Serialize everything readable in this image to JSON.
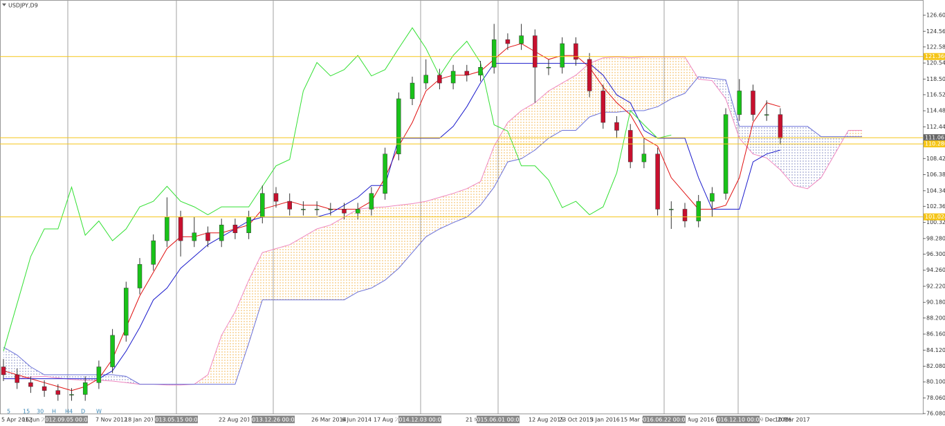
{
  "chart_data": {
    "type": "candlestick",
    "title": "USDJPY,D9",
    "up_color": "#19c219",
    "down_color": "#c8102e",
    "ylim": [
      76.08,
      128.53
    ],
    "yticks": [
      {
        "value": 126.6,
        "label": "126.600"
      },
      {
        "value": 124.56,
        "label": "124.560"
      },
      {
        "value": 122.58,
        "label": "122.580"
      },
      {
        "value": 120.54,
        "label": "120.540"
      },
      {
        "value": 118.5,
        "label": "118.500"
      },
      {
        "value": 116.52,
        "label": "116.520"
      },
      {
        "value": 114.48,
        "label": "114.480"
      },
      {
        "value": 112.44,
        "label": "112.440"
      },
      {
        "value": 110.4,
        "label": "110.400"
      },
      {
        "value": 108.42,
        "label": "108.420"
      },
      {
        "value": 106.38,
        "label": "106.380"
      },
      {
        "value": 104.34,
        "label": "104.340"
      },
      {
        "value": 102.36,
        "label": "102.360"
      },
      {
        "value": 100.32,
        "label": "100.320"
      },
      {
        "value": 98.28,
        "label": "98.280"
      },
      {
        "value": 96.3,
        "label": "96.300"
      },
      {
        "value": 94.26,
        "label": "94.260"
      },
      {
        "value": 92.22,
        "label": "92.220"
      },
      {
        "value": 90.18,
        "label": "90.180"
      },
      {
        "value": 88.2,
        "label": "88.200"
      },
      {
        "value": 86.16,
        "label": "86.160"
      },
      {
        "value": 84.12,
        "label": "84.120"
      },
      {
        "value": 82.08,
        "label": "82.080"
      },
      {
        "value": 80.1,
        "label": "80.100"
      },
      {
        "value": 78.06,
        "label": "78.060"
      },
      {
        "value": 76.08,
        "label": "76.080"
      }
    ],
    "levels": [
      {
        "value": 121.36,
        "label": "121.360"
      },
      111.067,
      {
        "value": 110.28,
        "label": "110.280"
      },
      101.024
    ],
    "level_color": "#f5c518",
    "level_label_colors": [
      "#f5c518",
      "#666666",
      "#f5c518",
      "#f5c518"
    ],
    "x_labels": [
      "5 Apr 2012",
      "16 Jun 2012",
      "7 Nov 2012",
      "18 Jan 2013",
      "22 Aug 2013",
      "26 Mar 2014",
      "6 Jun 2014",
      "17 Aug 2014",
      "21 Mar 2015",
      "12 Aug 2015",
      "23 Oct 2015",
      "3 Jan 2016",
      "15 Mar 2016",
      "6 Aug 2016",
      "17 Oct 2016",
      "29 Dec 2016",
      "10 Mar 2017",
      "2012.09.05 00:00",
      "2013.05.15 00:00",
      "2013.12.26 00:00",
      "2014.12.03 00:00",
      "2015.06.01 00:00",
      "2016.06.22 00:00",
      "2016.12.10 00:00"
    ],
    "timeframes": [
      "5",
      "15",
      "30",
      "H",
      "H4",
      "D",
      "W"
    ],
    "candles": [
      [
        82,
        83,
        80.2,
        81
      ],
      [
        81,
        81.8,
        79.2,
        80
      ],
      [
        80,
        80.8,
        78.7,
        79.5
      ],
      [
        79.5,
        80.3,
        78.2,
        79
      ],
      [
        79,
        79.8,
        77.7,
        78.5
      ],
      [
        78.5,
        79.3,
        77.7,
        78.5
      ],
      [
        78.5,
        80.8,
        77.7,
        80
      ],
      [
        80,
        82.8,
        79.2,
        82
      ],
      [
        82,
        86.8,
        81.2,
        86
      ],
      [
        86,
        92.8,
        85.2,
        92
      ],
      [
        92,
        95.8,
        91.2,
        95
      ],
      [
        95,
        98.8,
        94.2,
        98
      ],
      [
        98,
        103.5,
        97.2,
        101
      ],
      [
        101,
        101.8,
        96,
        98
      ],
      [
        98,
        101,
        97.2,
        99
      ],
      [
        99,
        99.8,
        97.2,
        98
      ],
      [
        98,
        100.8,
        97.2,
        100
      ],
      [
        100,
        100.8,
        98.2,
        99
      ],
      [
        99,
        101.8,
        98.2,
        101
      ],
      [
        101,
        105,
        100.2,
        104
      ],
      [
        104,
        104.8,
        102.2,
        103
      ],
      [
        103,
        104,
        101.2,
        102
      ],
      [
        102,
        103,
        101.2,
        102
      ],
      [
        102,
        103,
        101.2,
        102
      ],
      [
        102,
        102.8,
        101.2,
        102
      ],
      [
        102,
        102.8,
        100.7,
        101.5
      ],
      [
        101.5,
        102.8,
        100.7,
        102
      ],
      [
        102,
        104.8,
        101.2,
        104
      ],
      [
        104,
        109.8,
        103.2,
        109
      ],
      [
        109,
        116.8,
        108.2,
        116
      ],
      [
        116,
        118.8,
        115.2,
        118
      ],
      [
        118,
        121,
        117.2,
        119
      ],
      [
        119,
        119.8,
        117.2,
        118
      ],
      [
        118,
        120.3,
        117.2,
        119.5
      ],
      [
        119.5,
        120.3,
        118.2,
        119
      ],
      [
        119,
        120.8,
        118.2,
        120
      ],
      [
        120,
        125.5,
        119.2,
        123.5
      ],
      [
        123.5,
        124.3,
        122.2,
        123
      ],
      [
        123,
        125.5,
        122.2,
        124
      ],
      [
        124,
        124.8,
        115.5,
        120
      ],
      [
        120,
        121,
        119,
        120
      ],
      [
        120,
        123.8,
        119.2,
        123
      ],
      [
        123,
        123.8,
        120.2,
        121
      ],
      [
        121,
        121.8,
        116.2,
        117
      ],
      [
        117,
        117.8,
        112.2,
        113
      ],
      [
        113,
        113.8,
        111,
        112
      ],
      [
        112,
        112.8,
        107.2,
        108
      ],
      [
        108,
        111,
        107.2,
        109
      ],
      [
        109,
        109.8,
        101.2,
        102
      ],
      [
        102,
        103,
        99.5,
        102
      ],
      [
        102,
        102.8,
        99.7,
        100.5
      ],
      [
        100.5,
        103.8,
        99.7,
        103
      ],
      [
        103,
        104.8,
        101,
        104
      ],
      [
        104,
        114.8,
        103.2,
        114
      ],
      [
        114,
        118.5,
        113.2,
        117
      ],
      [
        117,
        117.8,
        113.2,
        114
      ],
      [
        114,
        115.8,
        113.2,
        114
      ],
      [
        114,
        114.8,
        110.2,
        111
      ]
    ],
    "series": [
      {
        "color": "#ee86bf",
        "values": [
          80.5,
          80.5,
          80.7,
          80.8,
          80.6,
          80.4,
          80.3,
          80.3,
          80.2,
          80,
          79.8,
          79.8,
          79.7,
          79.7,
          79.8,
          81,
          86,
          89,
          93,
          96.5,
          97,
          97.5,
          98.5,
          99.5,
          100,
          101,
          102,
          102.2,
          102.3,
          102.5,
          102.7,
          103,
          103.5,
          104,
          104.6,
          105.5,
          110,
          113,
          114.5,
          115.5,
          117,
          118,
          119,
          120.5,
          121.2,
          121.3,
          121.2,
          121.3,
          121.3,
          121.3,
          121.3,
          118.5,
          118.3,
          116,
          111,
          109,
          108.5,
          107,
          105,
          104.6,
          106,
          109,
          112,
          112
        ]
      },
      {
        "color": "#6a70d8",
        "values": [
          84.5,
          83.5,
          82,
          81,
          81,
          81,
          81,
          81,
          81,
          80.8,
          79.8,
          79.8,
          79.8,
          79.8,
          79.8,
          79.8,
          79.8,
          79.8,
          85,
          90.5,
          90.5,
          90.5,
          90.5,
          90.5,
          90.5,
          90.5,
          91.5,
          92,
          93,
          94.5,
          96.5,
          98.5,
          99.5,
          100.3,
          101,
          102.5,
          104.8,
          108,
          108.4,
          109.5,
          111,
          112,
          112,
          113.7,
          114.3,
          114.3,
          114.5,
          114.5,
          115,
          116,
          116.7,
          118.8,
          118.6,
          118.4,
          112.5,
          112.5,
          112.5,
          112.5,
          112.5,
          112.5,
          111.2,
          111.2,
          111.2,
          111.2
        ]
      },
      {
        "color": "#e01010",
        "values": [
          81.5,
          81,
          80.5,
          80,
          79.5,
          79,
          79.5,
          80.5,
          83,
          87,
          91,
          94,
          97,
          98.5,
          98.5,
          99,
          99,
          99.5,
          100,
          102,
          102.5,
          103,
          102.5,
          102.5,
          102,
          102,
          102,
          103,
          106,
          110,
          113,
          117,
          118.5,
          119,
          119,
          119.5,
          121,
          122.5,
          123,
          122,
          121,
          121.5,
          121.5,
          120,
          117.5,
          115.5,
          114,
          111,
          110,
          106,
          104,
          102,
          102,
          102.5,
          106,
          113,
          115.5,
          115,
          null,
          null,
          null,
          null,
          null,
          null
        ]
      },
      {
        "color": "#1a1acc",
        "values": [
          80.5,
          80.5,
          80.5,
          80.5,
          80.5,
          80.5,
          80.5,
          80.5,
          81.5,
          84,
          87,
          90.5,
          92,
          94.5,
          96,
          97.5,
          98.5,
          99.5,
          100.5,
          101,
          101,
          101,
          101,
          101,
          101.5,
          102.5,
          103.5,
          105,
          105,
          111,
          111,
          111,
          111,
          112.5,
          115,
          118,
          120.5,
          120.5,
          120.5,
          120.5,
          120.5,
          120.5,
          120.5,
          120.5,
          119,
          116.5,
          115.5,
          112,
          111,
          111,
          111,
          106,
          102,
          102,
          102,
          108,
          109,
          109.5,
          null,
          null,
          null,
          null,
          null,
          null
        ]
      },
      {
        "color": "#33e033",
        "values": [
          84,
          90,
          96,
          99.5,
          99.5,
          104.8,
          98.7,
          100.5,
          98,
          99.5,
          102.3,
          103,
          104.9,
          103,
          102.3,
          101.3,
          102.3,
          102.3,
          102.3,
          104.9,
          107.5,
          108.3,
          117,
          120.6,
          118.9,
          119.7,
          121.5,
          118.9,
          119.7,
          122.4,
          125,
          122.4,
          118.9,
          121.5,
          123.3,
          120.6,
          112.7,
          111.9,
          107.5,
          107.5,
          105.7,
          102.2,
          103,
          101.3,
          102.3,
          106.6,
          114.5,
          112.7,
          111,
          111.4,
          null,
          null,
          null,
          null,
          null,
          null,
          null,
          null,
          null,
          null,
          null,
          null,
          null,
          null
        ]
      }
    ]
  }
}
